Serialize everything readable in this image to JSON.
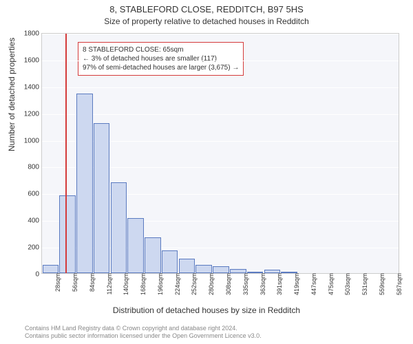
{
  "titles": {
    "main": "8, STABLEFORD CLOSE, REDDITCH, B97 5HS",
    "sub": "Size of property relative to detached houses in Redditch"
  },
  "axes": {
    "ylabel": "Number of detached properties",
    "xlabel": "Distribution of detached houses by size in Redditch"
  },
  "chart": {
    "type": "histogram",
    "ylim": [
      0,
      1800
    ],
    "ytick_step": 200,
    "background_color": "#f5f6fa",
    "grid_color": "#ffffff",
    "bar_fill": "#cdd8f0",
    "bar_stroke": "#5a7ac0",
    "marker_color": "#d43a3a",
    "marker_value_sqm": 65,
    "x_categories": [
      "28sqm",
      "56sqm",
      "84sqm",
      "112sqm",
      "140sqm",
      "168sqm",
      "196sqm",
      "224sqm",
      "252sqm",
      "280sqm",
      "308sqm",
      "335sqm",
      "363sqm",
      "391sqm",
      "419sqm",
      "447sqm",
      "475sqm",
      "503sqm",
      "531sqm",
      "559sqm",
      "587sqm"
    ],
    "values": [
      60,
      580,
      1340,
      1120,
      680,
      410,
      270,
      170,
      110,
      60,
      50,
      30,
      10,
      25,
      10,
      0,
      0,
      0,
      0,
      0,
      0
    ]
  },
  "annotation": {
    "line1": "8 STABLEFORD CLOSE: 65sqm",
    "line2": "← 3% of detached houses are smaller (117)",
    "line3": "97% of semi-detached houses are larger (3,675) →"
  },
  "footer": {
    "line1": "Contains HM Land Registry data © Crown copyright and database right 2024.",
    "line2": "Contains public sector information licensed under the Open Government Licence v3.0."
  }
}
